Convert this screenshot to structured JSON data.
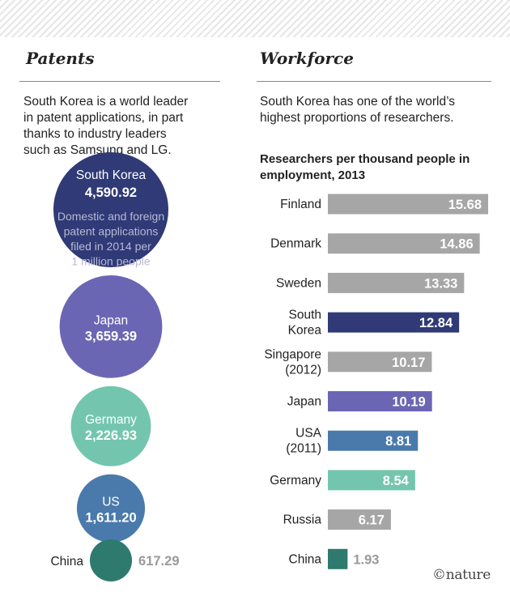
{
  "patents": {
    "heading": "Patents",
    "intro": [
      "South Korea is a world leader",
      "in patent applications, in part",
      "thanks to industry leaders",
      "such as Samsung and LG."
    ]
  },
  "workforce": {
    "heading": "Workforce",
    "intro": [
      "South Korea has one of the world’s",
      "highest proportions of researchers."
    ]
  },
  "credit": "©nature",
  "chart_data": [
    {
      "type": "bubble",
      "title": "",
      "annotation": [
        "Domestic and foreign",
        "patent applications",
        "filed in 2014 per",
        "1 million people"
      ],
      "categories": [
        "South Korea",
        "Japan",
        "Germany",
        "US",
        "China"
      ],
      "values": [
        "4,590.92",
        "3,659.39",
        "2,226.93",
        "1,611.20",
        "617.29"
      ],
      "colors": [
        "#2f3a76",
        "#6b66b3",
        "#73c6ad",
        "#4a7aab",
        "#2e7a6e"
      ]
    },
    {
      "type": "bar",
      "title": [
        "Researchers per thousand people in",
        "employment, 2013"
      ],
      "categories": [
        [
          "Finland"
        ],
        [
          "Denmark"
        ],
        [
          "Sweden"
        ],
        [
          "South",
          "Korea"
        ],
        [
          "Singapore",
          "(2012)"
        ],
        [
          "Japan"
        ],
        [
          "USA",
          "(2011)"
        ],
        [
          "Germany"
        ],
        [
          "Russia"
        ],
        [
          "China"
        ]
      ],
      "values": [
        15.68,
        14.86,
        13.33,
        12.84,
        10.17,
        10.19,
        8.81,
        8.54,
        6.17,
        1.93
      ],
      "labels": [
        "15.68",
        "14.86",
        "13.33",
        "12.84",
        "10.17",
        "10.19",
        "8.81",
        "8.54",
        "6.17",
        "1.93"
      ],
      "colors": [
        "#a6a6a6",
        "#a6a6a6",
        "#a6a6a6",
        "#2f3a76",
        "#a6a6a6",
        "#6b66b3",
        "#4a7aab",
        "#73c6ad",
        "#a6a6a6",
        "#2e7a6e"
      ],
      "xlim": [
        0,
        15.68
      ]
    }
  ]
}
